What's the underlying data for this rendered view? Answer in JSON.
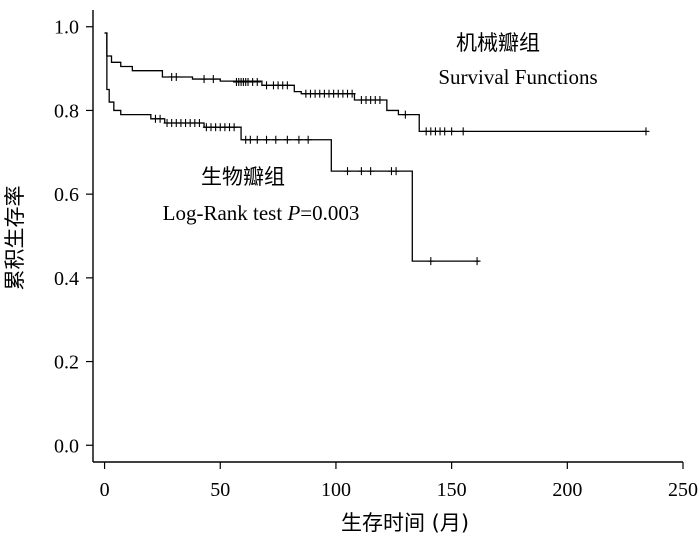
{
  "chart_data": {
    "type": "line",
    "subtype": "kaplan-meier-step",
    "title": "",
    "xlabel": "生存时间 (月)",
    "ylabel": "累积生存率",
    "xlim": [
      -5,
      250
    ],
    "ylim": [
      -0.04,
      1.04
    ],
    "xticks": [
      0,
      50,
      100,
      150,
      200,
      250
    ],
    "yticks": [
      0.0,
      0.2,
      0.4,
      0.6,
      0.8,
      1.0
    ],
    "xtick_labels": [
      "0",
      "50",
      "100",
      "150",
      "200",
      "250"
    ],
    "ytick_labels": [
      "0.0",
      "0.2",
      "0.4",
      "0.6",
      "0.8",
      "1.0"
    ],
    "grid": false,
    "series": [
      {
        "name": "机械瓣组",
        "steps": [
          [
            0,
            0.985
          ],
          [
            1,
            0.93
          ],
          [
            3,
            0.915
          ],
          [
            7,
            0.905
          ],
          [
            12,
            0.895
          ],
          [
            25,
            0.88
          ],
          [
            38,
            0.875
          ],
          [
            50,
            0.87
          ],
          [
            68,
            0.86
          ],
          [
            82,
            0.845
          ],
          [
            85,
            0.84
          ],
          [
            108,
            0.825
          ],
          [
            122,
            0.8
          ],
          [
            127,
            0.79
          ],
          [
            136,
            0.75
          ],
          [
            234,
            0.75
          ]
        ],
        "censored": [
          [
            29,
            0.88
          ],
          [
            31,
            0.88
          ],
          [
            43,
            0.875
          ],
          [
            47,
            0.875
          ],
          [
            57,
            0.868
          ],
          [
            58,
            0.868
          ],
          [
            59,
            0.868
          ],
          [
            60,
            0.868
          ],
          [
            61,
            0.868
          ],
          [
            62,
            0.868
          ],
          [
            64,
            0.868
          ],
          [
            66,
            0.868
          ],
          [
            70,
            0.86
          ],
          [
            73,
            0.86
          ],
          [
            75,
            0.86
          ],
          [
            77,
            0.86
          ],
          [
            79,
            0.86
          ],
          [
            87,
            0.84
          ],
          [
            89,
            0.84
          ],
          [
            91,
            0.84
          ],
          [
            93,
            0.84
          ],
          [
            95,
            0.84
          ],
          [
            97,
            0.84
          ],
          [
            99,
            0.84
          ],
          [
            101,
            0.84
          ],
          [
            103,
            0.84
          ],
          [
            105,
            0.84
          ],
          [
            107,
            0.84
          ],
          [
            111,
            0.825
          ],
          [
            113,
            0.825
          ],
          [
            115,
            0.825
          ],
          [
            117,
            0.825
          ],
          [
            119,
            0.825
          ],
          [
            130,
            0.79
          ],
          [
            139,
            0.75
          ],
          [
            141,
            0.75
          ],
          [
            143,
            0.75
          ],
          [
            145,
            0.75
          ],
          [
            147,
            0.75
          ],
          [
            150,
            0.75
          ],
          [
            155,
            0.75
          ],
          [
            234,
            0.75
          ]
        ]
      },
      {
        "name": "生物瓣组",
        "steps": [
          [
            0,
            0.985
          ],
          [
            1,
            0.85
          ],
          [
            2,
            0.82
          ],
          [
            4,
            0.8
          ],
          [
            7,
            0.79
          ],
          [
            20,
            0.78
          ],
          [
            26,
            0.77
          ],
          [
            43,
            0.76
          ],
          [
            59,
            0.73
          ],
          [
            98,
            0.655
          ],
          [
            133,
            0.44
          ],
          [
            162,
            0.44
          ]
        ],
        "censored": [
          [
            22,
            0.78
          ],
          [
            24,
            0.78
          ],
          [
            27,
            0.77
          ],
          [
            29,
            0.77
          ],
          [
            31,
            0.77
          ],
          [
            33,
            0.77
          ],
          [
            35,
            0.77
          ],
          [
            37,
            0.77
          ],
          [
            39,
            0.77
          ],
          [
            41,
            0.77
          ],
          [
            44,
            0.76
          ],
          [
            46,
            0.76
          ],
          [
            48,
            0.76
          ],
          [
            50,
            0.76
          ],
          [
            52,
            0.76
          ],
          [
            54,
            0.76
          ],
          [
            56,
            0.76
          ],
          [
            61,
            0.73
          ],
          [
            63,
            0.73
          ],
          [
            66,
            0.73
          ],
          [
            70,
            0.73
          ],
          [
            74,
            0.73
          ],
          [
            79,
            0.73
          ],
          [
            84,
            0.73
          ],
          [
            88,
            0.73
          ],
          [
            105,
            0.655
          ],
          [
            111,
            0.655
          ],
          [
            115,
            0.655
          ],
          [
            124,
            0.655
          ],
          [
            126,
            0.655
          ],
          [
            141,
            0.44
          ],
          [
            161,
            0.44
          ]
        ]
      }
    ],
    "annotations": {
      "mech_label": "机械瓣组",
      "mech_sub": "Survival Functions",
      "bio_label": "生物瓣组",
      "test_prefix": "Log-Rank test ",
      "test_p": "P",
      "test_value": "=0.003"
    }
  }
}
